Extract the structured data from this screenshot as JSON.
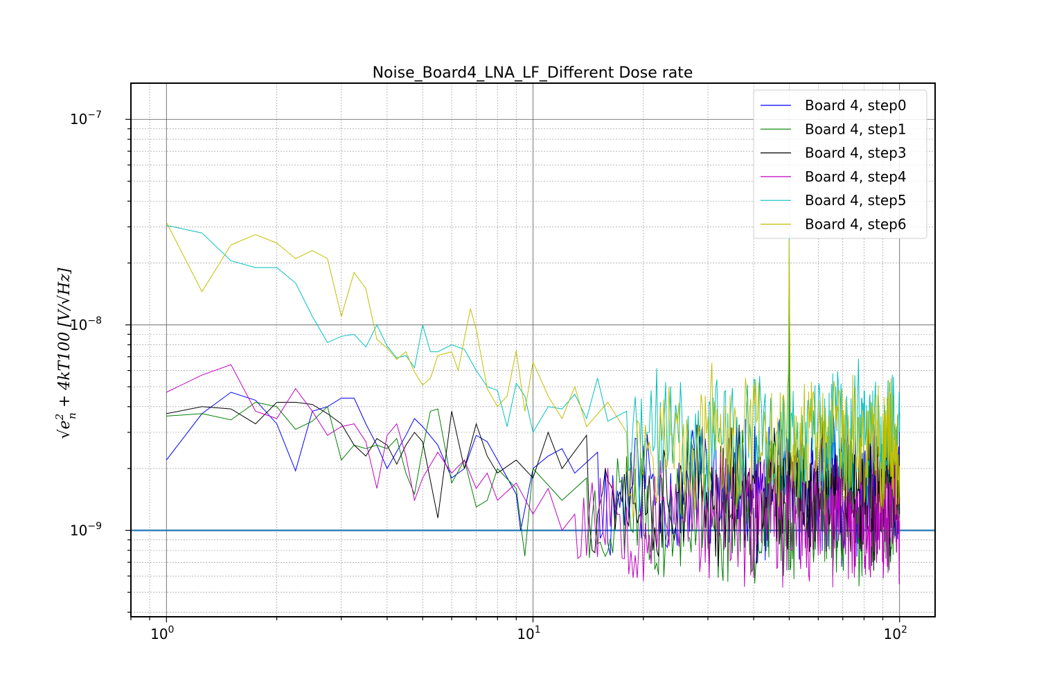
{
  "chart_data": {
    "type": "line",
    "title": "Noise_Board4_LNA_LF_Different Dose rate",
    "xlabel": "",
    "ylabel": "√(e_n² + 4kT100) [V/√Hz]",
    "ylabel_display": {
      "sqrt": "√",
      "base": "e",
      "sup": "2",
      "sub": "n",
      "rest": " + 4kT100 [V/√Hz]"
    },
    "x_scale": "log",
    "y_scale": "log",
    "xlim": [
      0.8,
      125
    ],
    "ylim": [
      3.8e-10,
      1.5e-07
    ],
    "grid": true,
    "legend_position": "top-right",
    "x_ticks": [
      {
        "value": 1,
        "base": "10",
        "exp": "0"
      },
      {
        "value": 10,
        "base": "10",
        "exp": "1"
      },
      {
        "value": 100,
        "base": "10",
        "exp": "2"
      }
    ],
    "y_ticks": [
      {
        "value": 1e-09,
        "base": "10",
        "exp": "−9"
      },
      {
        "value": 1e-08,
        "base": "10",
        "exp": "−8"
      },
      {
        "value": 1e-07,
        "base": "10",
        "exp": "−7"
      }
    ],
    "reference_line": {
      "y": 1e-09,
      "color": "#1f77b4"
    },
    "series": [
      {
        "name": "Board 4, step0",
        "color": "#0000ff",
        "seed": 11,
        "base": 1.6e-09,
        "spike": 3e-09,
        "anchors": [
          [
            1,
            2.2e-09
          ],
          [
            1.25,
            3.7e-09
          ],
          [
            1.5,
            4.7e-09
          ],
          [
            1.75,
            4.3e-09
          ],
          [
            2,
            3.3e-09
          ],
          [
            2.25,
            1.95e-09
          ],
          [
            2.5,
            3.8e-09
          ],
          [
            2.75,
            4e-09
          ],
          [
            3,
            4.4e-09
          ],
          [
            3.25,
            4.4e-09
          ],
          [
            3.5,
            3.3e-09
          ],
          [
            3.75,
            2.6e-09
          ],
          [
            4,
            2e-09
          ],
          [
            4.5,
            2.9e-09
          ],
          [
            4.75,
            3.5e-09
          ],
          [
            5,
            3.2e-09
          ],
          [
            5.5,
            2.6e-09
          ],
          [
            6,
            1.8e-09
          ],
          [
            6.5,
            2e-09
          ],
          [
            7,
            2.9e-09
          ],
          [
            7.5,
            2.7e-09
          ],
          [
            8,
            2.2e-09
          ],
          [
            9,
            1.5e-09
          ],
          [
            9.25,
            1e-09
          ],
          [
            10,
            2e-09
          ],
          [
            11,
            2.3e-09
          ],
          [
            12,
            2.5e-09
          ],
          [
            13,
            1.9e-09
          ],
          [
            15,
            2.4e-09
          ]
        ]
      },
      {
        "name": "Board 4, step1",
        "color": "#008000",
        "seed": 23,
        "base": 1.25e-09,
        "spike": 1.25e-08,
        "anchors": [
          [
            1,
            3.6e-09
          ],
          [
            1.25,
            3.7e-09
          ],
          [
            1.5,
            3.45e-09
          ],
          [
            1.75,
            4.2e-09
          ],
          [
            2,
            4e-09
          ],
          [
            2.25,
            3.1e-09
          ],
          [
            2.5,
            3.4e-09
          ],
          [
            2.75,
            4e-09
          ],
          [
            3,
            2.2e-09
          ],
          [
            3.25,
            2.6e-09
          ],
          [
            3.5,
            2.5e-09
          ],
          [
            3.75,
            2.6e-09
          ],
          [
            4,
            2.5e-09
          ],
          [
            4.25,
            2.8e-09
          ],
          [
            4.5,
            1.9e-09
          ],
          [
            4.75,
            1.5e-09
          ],
          [
            5,
            2.5e-09
          ],
          [
            5.25,
            3.8e-09
          ],
          [
            5.5,
            3.9e-09
          ],
          [
            6,
            1.7e-09
          ],
          [
            6.5,
            2.2e-09
          ],
          [
            7,
            1.3e-09
          ],
          [
            7.5,
            1.4e-09
          ],
          [
            8,
            2e-09
          ],
          [
            9,
            1.6e-09
          ],
          [
            9.5,
            7.5e-10
          ],
          [
            10,
            2e-09
          ],
          [
            12,
            1.4e-09
          ],
          [
            14,
            1.8e-09
          ]
        ]
      },
      {
        "name": "Board 4, step3",
        "color": "#000000",
        "seed": 37,
        "base": 1.55e-09,
        "spike": 2.4e-09,
        "anchors": [
          [
            1,
            3.7e-09
          ],
          [
            1.25,
            4e-09
          ],
          [
            1.5,
            3.9e-09
          ],
          [
            1.75,
            3.3e-09
          ],
          [
            2,
            4.2e-09
          ],
          [
            2.25,
            4.2e-09
          ],
          [
            2.5,
            4.1e-09
          ],
          [
            2.75,
            3.7e-09
          ],
          [
            3,
            3.3e-09
          ],
          [
            3.25,
            2.6e-09
          ],
          [
            3.5,
            2.3e-09
          ],
          [
            3.75,
            2.8e-09
          ],
          [
            4,
            2.6e-09
          ],
          [
            4.25,
            2.1e-09
          ],
          [
            4.5,
            2.6e-09
          ],
          [
            4.75,
            3e-09
          ],
          [
            5,
            2.7e-09
          ],
          [
            5.5,
            1.15e-09
          ],
          [
            6,
            3.8e-09
          ],
          [
            6.5,
            2e-09
          ],
          [
            7,
            3.3e-09
          ],
          [
            7.5,
            2.3e-09
          ],
          [
            8,
            1.9e-09
          ],
          [
            9,
            2.2e-09
          ],
          [
            10,
            1.8e-09
          ],
          [
            11,
            3e-09
          ],
          [
            12,
            2e-09
          ],
          [
            14,
            2.9e-09
          ]
        ]
      },
      {
        "name": "Board 4, step4",
        "color": "#c000c0",
        "seed": 53,
        "base": 1.2e-09,
        "spike": 1.6e-09,
        "anchors": [
          [
            1,
            4.7e-09
          ],
          [
            1.25,
            5.7e-09
          ],
          [
            1.5,
            6.4e-09
          ],
          [
            1.75,
            3.8e-09
          ],
          [
            2,
            3.5e-09
          ],
          [
            2.25,
            4.9e-09
          ],
          [
            2.5,
            3.8e-09
          ],
          [
            2.75,
            2.9e-09
          ],
          [
            3,
            3.2e-09
          ],
          [
            3.25,
            3.3e-09
          ],
          [
            3.5,
            2.7e-09
          ],
          [
            3.75,
            1.6e-09
          ],
          [
            4,
            2.9e-09
          ],
          [
            4.25,
            3.3e-09
          ],
          [
            4.5,
            2.3e-09
          ],
          [
            4.75,
            1.4e-09
          ],
          [
            5,
            1.8e-09
          ],
          [
            5.5,
            2.4e-09
          ],
          [
            6,
            1.9e-09
          ],
          [
            6.5,
            2.2e-09
          ],
          [
            7,
            1.6e-09
          ],
          [
            7.5,
            1.9e-09
          ],
          [
            8,
            1.4e-09
          ],
          [
            9,
            1.7e-09
          ],
          [
            10,
            1.2e-09
          ],
          [
            11,
            1.6e-09
          ],
          [
            12,
            1e-09
          ],
          [
            13,
            1.2e-09
          ]
        ]
      },
      {
        "name": "Board 4, step5",
        "color": "#00bfbf",
        "seed": 71,
        "base": 2.8e-09,
        "spike": 2.8e-08,
        "anchors": [
          [
            1,
            3.05e-08
          ],
          [
            1.25,
            2.8e-08
          ],
          [
            1.5,
            2.05e-08
          ],
          [
            1.75,
            1.9e-08
          ],
          [
            2,
            1.9e-08
          ],
          [
            2.25,
            1.6e-08
          ],
          [
            2.5,
            1.1e-08
          ],
          [
            2.75,
            8.2e-09
          ],
          [
            3,
            8.8e-09
          ],
          [
            3.25,
            9e-09
          ],
          [
            3.5,
            7.8e-09
          ],
          [
            3.75,
            1e-08
          ],
          [
            4,
            7.9e-09
          ],
          [
            4.25,
            6.9e-09
          ],
          [
            4.5,
            7.1e-09
          ],
          [
            4.75,
            6.2e-09
          ],
          [
            5,
            1e-08
          ],
          [
            5.25,
            7.4e-09
          ],
          [
            5.5,
            7.4e-09
          ],
          [
            6,
            8e-09
          ],
          [
            6.5,
            7.6e-09
          ],
          [
            7,
            6e-09
          ],
          [
            7.5,
            5e-09
          ],
          [
            8,
            4.8e-09
          ],
          [
            8.5,
            3.2e-09
          ],
          [
            9,
            5.2e-09
          ],
          [
            9.5,
            4.5e-09
          ],
          [
            10,
            3e-09
          ],
          [
            11,
            4e-09
          ],
          [
            12,
            3.9e-09
          ],
          [
            13,
            4.6e-09
          ],
          [
            14,
            3.5e-09
          ],
          [
            15,
            5.5e-09
          ],
          [
            16,
            3.4e-09
          ],
          [
            18,
            3.8e-09
          ]
        ]
      },
      {
        "name": "Board 4, step6",
        "color": "#bfbf00",
        "seed": 97,
        "base": 2.6e-09,
        "spike": 2.6e-08,
        "anchors": [
          [
            1,
            3.15e-08
          ],
          [
            1.25,
            1.45e-08
          ],
          [
            1.5,
            2.45e-08
          ],
          [
            1.75,
            2.75e-08
          ],
          [
            2,
            2.5e-08
          ],
          [
            2.25,
            2.1e-08
          ],
          [
            2.5,
            2.3e-08
          ],
          [
            2.75,
            2.1e-08
          ],
          [
            3,
            1.1e-08
          ],
          [
            3.25,
            1.8e-08
          ],
          [
            3.5,
            1.5e-08
          ],
          [
            3.75,
            8.5e-09
          ],
          [
            4,
            7.7e-09
          ],
          [
            4.25,
            6.8e-09
          ],
          [
            4.5,
            7.4e-09
          ],
          [
            4.75,
            5.9e-09
          ],
          [
            5,
            5.1e-09
          ],
          [
            5.25,
            5.5e-09
          ],
          [
            5.5,
            7.1e-09
          ],
          [
            6,
            7.4e-09
          ],
          [
            6.25,
            6e-09
          ],
          [
            6.5,
            8.6e-09
          ],
          [
            6.75,
            1.2e-08
          ],
          [
            7,
            9.5e-09
          ],
          [
            7.5,
            4.9e-09
          ],
          [
            8,
            4e-09
          ],
          [
            8.5,
            4.5e-09
          ],
          [
            9,
            7.5e-09
          ],
          [
            9.5,
            3.8e-09
          ],
          [
            10,
            6.6e-09
          ],
          [
            11,
            4.5e-09
          ],
          [
            12,
            3.5e-09
          ],
          [
            13,
            5e-09
          ],
          [
            14,
            3.2e-09
          ],
          [
            16,
            4.2e-09
          ],
          [
            18,
            3e-09
          ]
        ]
      }
    ]
  }
}
